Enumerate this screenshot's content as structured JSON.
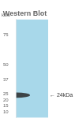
{
  "chart_data": {
    "type": "band",
    "title": "Western Blot",
    "ylabel": "kDa",
    "values": [
      24.0
    ],
    "band_half_height": [
      2.2
    ],
    "color": "#2a2a2a",
    "annotation": "← 24kDa",
    "ylim": [
      5,
      88
    ],
    "yticks": [
      10,
      15,
      20,
      25,
      37,
      50,
      75
    ],
    "grid": false,
    "tick_labels": "y"
  }
}
